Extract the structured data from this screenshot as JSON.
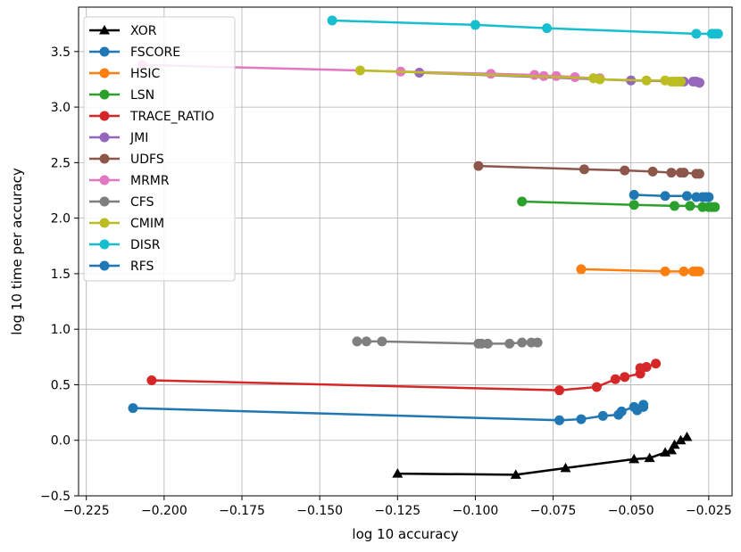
{
  "chart_data": {
    "type": "line",
    "title": "",
    "xlabel": "log 10 accuracy",
    "ylabel": "log 10 time per accuracy",
    "xlim": [
      -0.2275,
      -0.0175
    ],
    "ylim": [
      -0.5,
      3.9
    ],
    "xticks": [
      -0.225,
      -0.2,
      -0.175,
      -0.15,
      -0.125,
      -0.1,
      -0.075,
      -0.05,
      -0.025
    ],
    "xtick_labels": [
      "−0.225",
      "−0.200",
      "−0.175",
      "−0.150",
      "−0.125",
      "−0.100",
      "−0.075",
      "−0.050",
      "−0.025"
    ],
    "yticks": [
      -0.5,
      0.0,
      0.5,
      1.0,
      1.5,
      2.0,
      2.5,
      3.0,
      3.5
    ],
    "ytick_labels": [
      "−0.5",
      "0.0",
      "0.5",
      "1.0",
      "1.5",
      "2.0",
      "2.5",
      "3.0",
      "3.5"
    ],
    "grid": true,
    "legend_position": "top-left",
    "series": [
      {
        "name": "XOR",
        "color": "#000000",
        "marker": "triangle",
        "x": [
          -0.125,
          -0.087,
          -0.071,
          -0.049,
          -0.044,
          -0.039,
          -0.037,
          -0.036,
          -0.034,
          -0.032
        ],
        "y": [
          -0.3,
          -0.31,
          -0.25,
          -0.17,
          -0.16,
          -0.11,
          -0.09,
          -0.04,
          0.0,
          0.03
        ]
      },
      {
        "name": "FSCORE",
        "color": "#1f77b4",
        "marker": "circle",
        "x": [
          -0.21,
          -0.073,
          -0.066,
          -0.059,
          -0.054,
          -0.053,
          -0.049,
          -0.048,
          -0.046,
          -0.046
        ],
        "y": [
          0.29,
          0.18,
          0.19,
          0.22,
          0.23,
          0.26,
          0.3,
          0.27,
          0.3,
          0.32
        ]
      },
      {
        "name": "HSIC",
        "color": "#ff7f0e",
        "marker": "circle",
        "x": [
          -0.066,
          -0.039,
          -0.033,
          -0.03,
          -0.029,
          -0.028
        ],
        "y": [
          1.54,
          1.52,
          1.52,
          1.52,
          1.52,
          1.52
        ]
      },
      {
        "name": "LSN",
        "color": "#2ca02c",
        "marker": "circle",
        "x": [
          -0.085,
          -0.049,
          -0.036,
          -0.031,
          -0.027,
          -0.025,
          -0.024,
          -0.023
        ],
        "y": [
          2.15,
          2.12,
          2.11,
          2.11,
          2.1,
          2.1,
          2.1,
          2.1
        ]
      },
      {
        "name": "TRACE_RATIO",
        "color": "#d62728",
        "marker": "circle",
        "x": [
          -0.204,
          -0.073,
          -0.061,
          -0.055,
          -0.052,
          -0.047,
          -0.047,
          -0.045,
          -0.042
        ],
        "y": [
          0.54,
          0.45,
          0.48,
          0.55,
          0.57,
          0.6,
          0.65,
          0.66,
          0.69
        ]
      },
      {
        "name": "JMI",
        "color": "#9467bd",
        "marker": "circle",
        "x": [
          -0.118,
          -0.05,
          -0.033,
          -0.03,
          -0.029,
          -0.028,
          -0.028
        ],
        "y": [
          3.31,
          3.24,
          3.23,
          3.23,
          3.23,
          3.22,
          3.22
        ]
      },
      {
        "name": "UDFS",
        "color": "#8c564b",
        "marker": "circle",
        "x": [
          -0.099,
          -0.065,
          -0.052,
          -0.043,
          -0.037,
          -0.034,
          -0.033,
          -0.029,
          -0.028
        ],
        "y": [
          2.47,
          2.44,
          2.43,
          2.42,
          2.41,
          2.41,
          2.41,
          2.4,
          2.4
        ]
      },
      {
        "name": "MRMR",
        "color": "#e377c2",
        "marker": "circle",
        "x": [
          -0.207,
          -0.124,
          -0.095,
          -0.081,
          -0.078,
          -0.074,
          -0.068,
          -0.062,
          -0.06
        ],
        "y": [
          3.38,
          3.32,
          3.3,
          3.29,
          3.28,
          3.28,
          3.27,
          3.26,
          3.26
        ]
      },
      {
        "name": "CFS",
        "color": "#7f7f7f",
        "marker": "circle",
        "x": [
          -0.138,
          -0.135,
          -0.13,
          -0.099,
          -0.098,
          -0.096,
          -0.089,
          -0.085,
          -0.082,
          -0.08
        ],
        "y": [
          0.89,
          0.89,
          0.89,
          0.87,
          0.87,
          0.87,
          0.87,
          0.88,
          0.88,
          0.88
        ]
      },
      {
        "name": "CMIM",
        "color": "#bcbd22",
        "marker": "circle",
        "x": [
          -0.137,
          -0.062,
          -0.06,
          -0.045,
          -0.039,
          -0.037,
          -0.036,
          -0.035,
          -0.034
        ],
        "y": [
          3.33,
          3.26,
          3.25,
          3.24,
          3.24,
          3.23,
          3.23,
          3.23,
          3.23
        ]
      },
      {
        "name": "DISR",
        "color": "#17becf",
        "marker": "circle",
        "x": [
          -0.146,
          -0.1,
          -0.077,
          -0.029,
          -0.024,
          -0.023,
          -0.022
        ],
        "y": [
          3.78,
          3.74,
          3.71,
          3.66,
          3.66,
          3.66,
          3.66
        ]
      },
      {
        "name": "RFS",
        "color": "#1f77b4",
        "marker": "circle",
        "x": [
          -0.049,
          -0.039,
          -0.032,
          -0.029,
          -0.027,
          -0.026,
          -0.025
        ],
        "y": [
          2.21,
          2.2,
          2.2,
          2.19,
          2.19,
          2.19,
          2.19
        ]
      }
    ]
  }
}
